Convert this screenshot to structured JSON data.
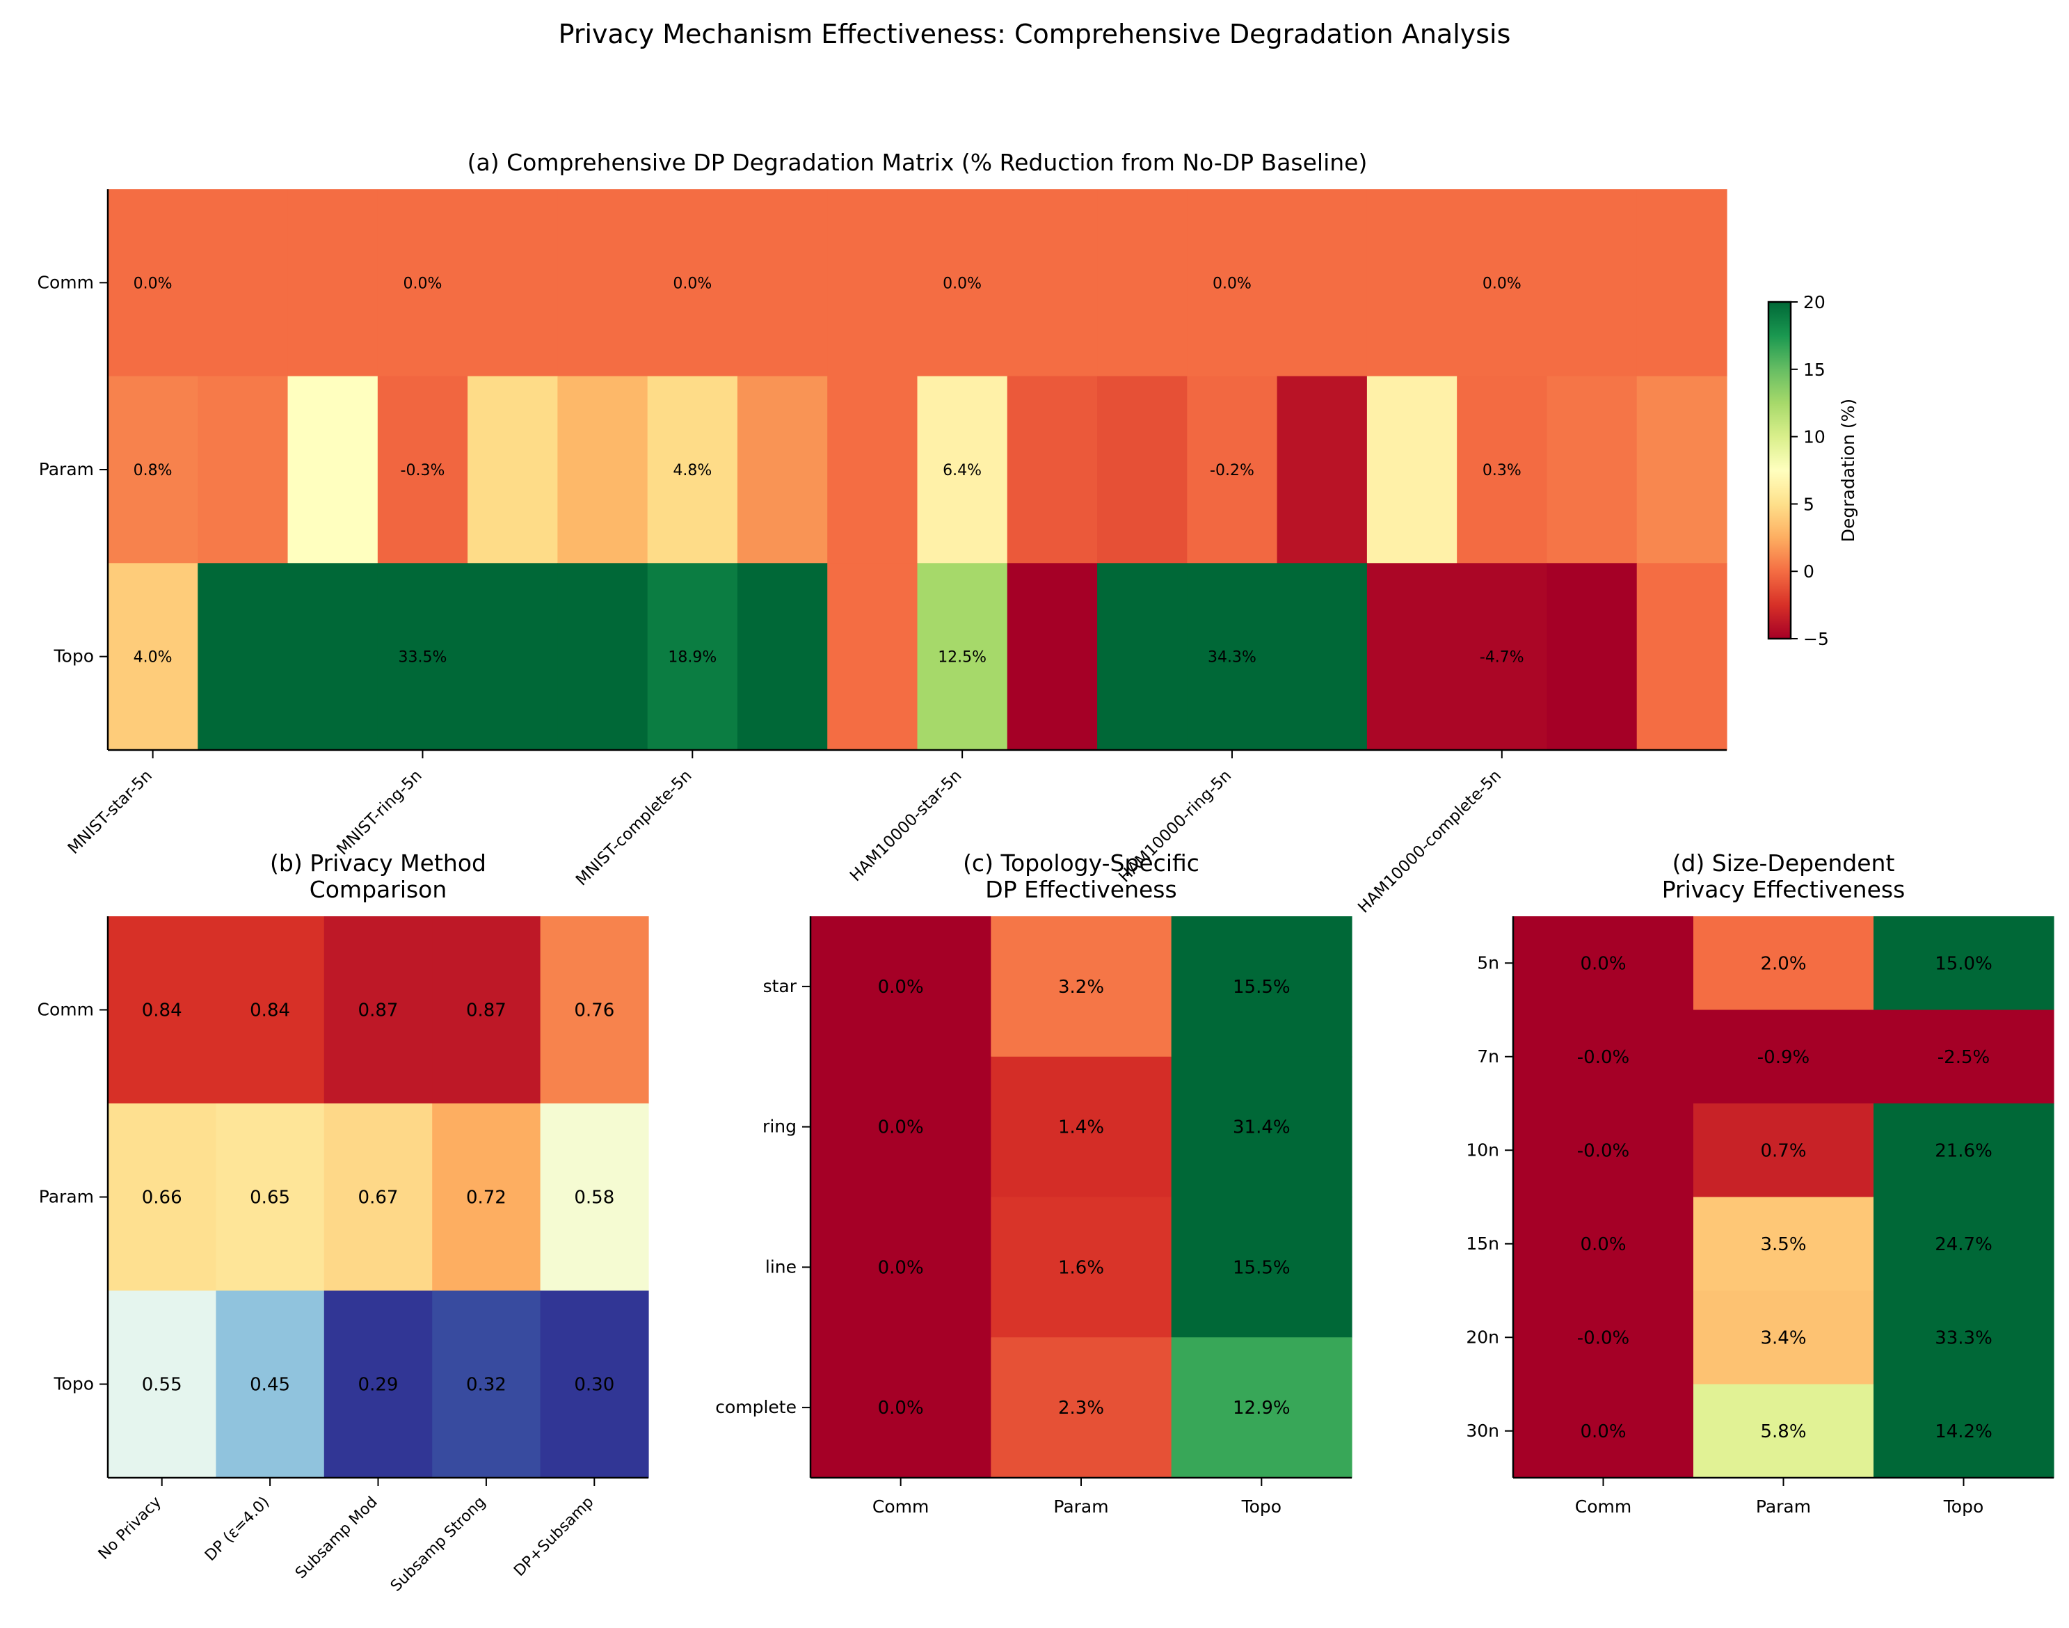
{
  "figure": {
    "title": "Privacy Mechanism Effectiveness: Comprehensive Degradation Analysis"
  },
  "chart_data": [
    {
      "id": "a",
      "type": "heatmap",
      "title": "(a) Comprehensive DP Degradation Matrix (% Reduction from No-DP Baseline)",
      "rows": [
        "Comm",
        "Param",
        "Topo"
      ],
      "xticks": [
        "MNIST-star-5n",
        "MNIST-ring-5n",
        "MNIST-complete-5n",
        "HAM10000-star-5n",
        "HAM10000-ring-5n",
        "HAM10000-complete-5n"
      ],
      "cell_values": [
        [
          0,
          0,
          0,
          0,
          0,
          0,
          0,
          0,
          0,
          0,
          0,
          0,
          0,
          0,
          0,
          0,
          0,
          0
        ],
        [
          0.8,
          0.5,
          7.5,
          -0.3,
          4.8,
          3.0,
          4.8,
          1.5,
          0,
          6.4,
          -0.8,
          -1.2,
          -0.2,
          -4.0,
          6.4,
          -0.1,
          0.3,
          1.0
        ],
        [
          4.0,
          33.5,
          33.5,
          33.5,
          33.5,
          33.5,
          18.9,
          34.0,
          0,
          12.5,
          -5.5,
          34.3,
          34.3,
          34.3,
          -4.7,
          -4.7,
          -5.5,
          0
        ]
      ],
      "annotations": [
        {
          "row": 0,
          "col": 0,
          "text": "0.0%"
        },
        {
          "row": 0,
          "col": 3,
          "text": "0.0%"
        },
        {
          "row": 0,
          "col": 6,
          "text": "0.0%"
        },
        {
          "row": 0,
          "col": 9,
          "text": "0.0%"
        },
        {
          "row": 0,
          "col": 12,
          "text": "0.0%"
        },
        {
          "row": 0,
          "col": 15,
          "text": "0.0%"
        },
        {
          "row": 1,
          "col": 0,
          "text": "0.8%"
        },
        {
          "row": 1,
          "col": 3,
          "text": "-0.3%"
        },
        {
          "row": 1,
          "col": 6,
          "text": "4.8%"
        },
        {
          "row": 1,
          "col": 9,
          "text": "6.4%"
        },
        {
          "row": 1,
          "col": 12,
          "text": "-0.2%"
        },
        {
          "row": 1,
          "col": 15,
          "text": "0.3%"
        },
        {
          "row": 2,
          "col": 0,
          "text": "4.0%"
        },
        {
          "row": 2,
          "col": 3,
          "text": "33.5%"
        },
        {
          "row": 2,
          "col": 6,
          "text": "18.9%"
        },
        {
          "row": 2,
          "col": 9,
          "text": "12.5%"
        },
        {
          "row": 2,
          "col": 12,
          "text": "34.3%"
        },
        {
          "row": 2,
          "col": 15,
          "text": "-4.7%"
        }
      ],
      "colormap": "RdYlGn",
      "vmin": -5,
      "vmax": 20,
      "colorbar": {
        "label": "Degradation (%)",
        "ticks": [
          "−5",
          "0",
          "5",
          "10",
          "15",
          "20"
        ],
        "tick_values": [
          -5,
          0,
          5,
          10,
          15,
          20
        ]
      }
    },
    {
      "id": "b",
      "type": "heatmap",
      "title": [
        "(b) Privacy Method",
        "Comparison"
      ],
      "rows": [
        "Comm",
        "Param",
        "Topo"
      ],
      "columns": [
        "No Privacy",
        "DP (ε=4.0)",
        "Subsamp Mod",
        "Subsamp Strong",
        "DP+Subsamp"
      ],
      "values": [
        [
          0.84,
          0.84,
          0.87,
          0.87,
          0.76
        ],
        [
          0.66,
          0.65,
          0.67,
          0.72,
          0.58
        ],
        [
          0.55,
          0.45,
          0.29,
          0.32,
          0.3
        ]
      ],
      "labels": [
        [
          "0.84",
          "0.84",
          "0.87",
          "0.87",
          "0.76"
        ],
        [
          "0.66",
          "0.65",
          "0.67",
          "0.72",
          "0.58"
        ],
        [
          "0.55",
          "0.45",
          "0.29",
          "0.32",
          "0.30"
        ]
      ],
      "colormap": "RdYlBu_r",
      "vmin": 0.3,
      "vmax": 0.9
    },
    {
      "id": "c",
      "type": "heatmap",
      "title": [
        "(c) Topology-Specific",
        "DP Effectiveness"
      ],
      "rows": [
        "star",
        "ring",
        "line",
        "complete"
      ],
      "columns": [
        "Comm",
        "Param",
        "Topo"
      ],
      "values": [
        [
          0.0,
          3.2,
          15.5
        ],
        [
          0.0,
          1.4,
          31.4
        ],
        [
          0.0,
          1.6,
          15.5
        ],
        [
          0.0,
          2.3,
          12.9
        ]
      ],
      "labels": [
        [
          "0.0%",
          "3.2%",
          "15.5%"
        ],
        [
          "0.0%",
          "1.4%",
          "31.4%"
        ],
        [
          "0.0%",
          "1.6%",
          "15.5%"
        ],
        [
          "0.0%",
          "2.3%",
          "12.9%"
        ]
      ],
      "colormap": "RdYlGn",
      "vmin": 0,
      "vmax": 15
    },
    {
      "id": "d",
      "type": "heatmap",
      "title": [
        "(d) Size-Dependent",
        "Privacy Effectiveness"
      ],
      "rows": [
        "5n",
        "7n",
        "10n",
        "15n",
        "20n",
        "30n"
      ],
      "columns": [
        "Comm",
        "Param",
        "Topo"
      ],
      "values": [
        [
          0.0,
          2.0,
          15.0
        ],
        [
          0.0,
          -0.9,
          -2.5
        ],
        [
          0.0,
          0.7,
          21.6
        ],
        [
          0.0,
          3.5,
          24.7
        ],
        [
          0.0,
          3.4,
          33.3
        ],
        [
          0.0,
          5.8,
          14.2
        ]
      ],
      "labels": [
        [
          "0.0%",
          "2.0%",
          "15.0%"
        ],
        [
          "-0.0%",
          "-0.9%",
          "-2.5%"
        ],
        [
          "-0.0%",
          "0.7%",
          "21.6%"
        ],
        [
          "0.0%",
          "3.5%",
          "24.7%"
        ],
        [
          "-0.0%",
          "3.4%",
          "33.3%"
        ],
        [
          "0.0%",
          "5.8%",
          "14.2%"
        ]
      ],
      "colormap": "RdYlGn",
      "vmin": 0,
      "vmax": 10
    }
  ]
}
